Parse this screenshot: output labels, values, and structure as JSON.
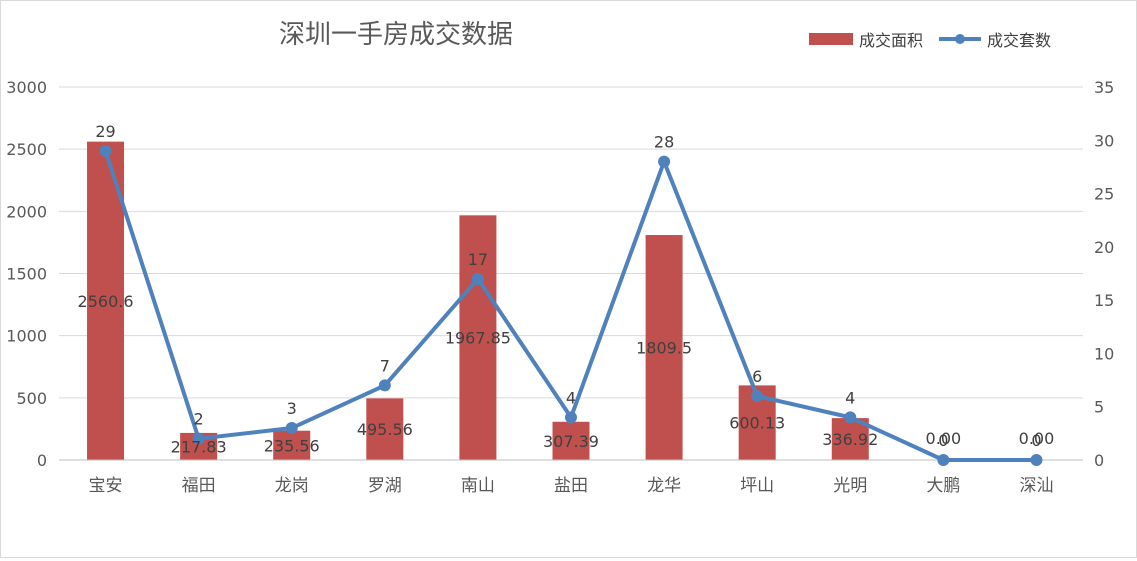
{
  "chart_data": {
    "type": "bar",
    "title": "深圳一手房成交数据",
    "categories": [
      "宝安",
      "福田",
      "龙岗",
      "罗湖",
      "南山",
      "盐田",
      "龙华",
      "坪山",
      "光明",
      "大鹏",
      "深汕"
    ],
    "series": [
      {
        "name": "成交面积",
        "type": "bar",
        "axis": "left",
        "color": "#c0504d",
        "values": [
          2560.6,
          217.83,
          235.56,
          495.56,
          1967.85,
          307.39,
          1809.5,
          600.13,
          336.92,
          0.0,
          0.0
        ],
        "labels": [
          "2560.6",
          "217.83",
          "235.56",
          "495.56",
          "1967.85",
          "307.39",
          "1809.5",
          "600.13",
          "336.92",
          "0.00",
          "0.00"
        ]
      },
      {
        "name": "成交套数",
        "type": "line",
        "axis": "right",
        "color": "#4f81bd",
        "values": [
          29,
          2,
          3,
          7,
          17,
          4,
          28,
          6,
          4,
          0,
          0
        ],
        "labels": [
          "29",
          "2",
          "3",
          "7",
          "17",
          "4",
          "28",
          "6",
          "4",
          "0",
          "0"
        ]
      }
    ],
    "y_left": {
      "min": 0,
      "max": 3000,
      "ticks": [
        "0",
        "500",
        "1000",
        "1500",
        "2000",
        "2500",
        "3000"
      ]
    },
    "y_right": {
      "min": 0,
      "max": 35,
      "ticks": [
        "0",
        "5",
        "10",
        "15",
        "20",
        "25",
        "30",
        "35"
      ]
    },
    "grid": true,
    "legend": "top-right"
  }
}
